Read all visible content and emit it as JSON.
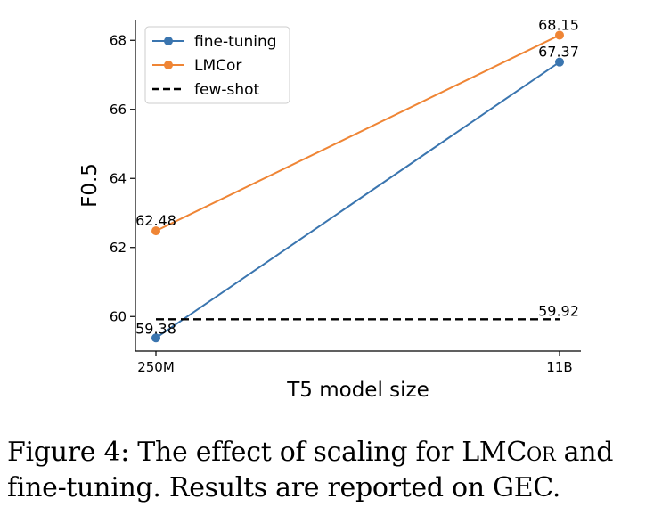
{
  "chart_data": {
    "type": "line",
    "categories": [
      "250M",
      "11B"
    ],
    "xlabel": "T5 model size",
    "ylabel": "F0.5",
    "ylim": [
      59,
      68.6
    ],
    "yticks": [
      60,
      62,
      64,
      66,
      68
    ],
    "legend_position": "top-left",
    "series": [
      {
        "name": "fine-tuning",
        "values": [
          59.38,
          67.37
        ],
        "labels": [
          "59.38",
          "67.37"
        ],
        "color": "#3a75af",
        "style": "solid-marker"
      },
      {
        "name": "LMCor",
        "values": [
          62.48,
          68.15
        ],
        "labels": [
          "62.48",
          "68.15"
        ],
        "color": "#ef8535",
        "style": "solid-marker"
      },
      {
        "name": "few-shot",
        "values": [
          59.92,
          59.92
        ],
        "labels": [
          "59.92"
        ],
        "color": "#000000",
        "style": "dashed"
      }
    ]
  },
  "caption": {
    "part1": "Figure 4: The effect of scaling for LMC",
    "smallcaps": "or",
    "part2": " and fine-tuning. Results are reported on GEC."
  }
}
